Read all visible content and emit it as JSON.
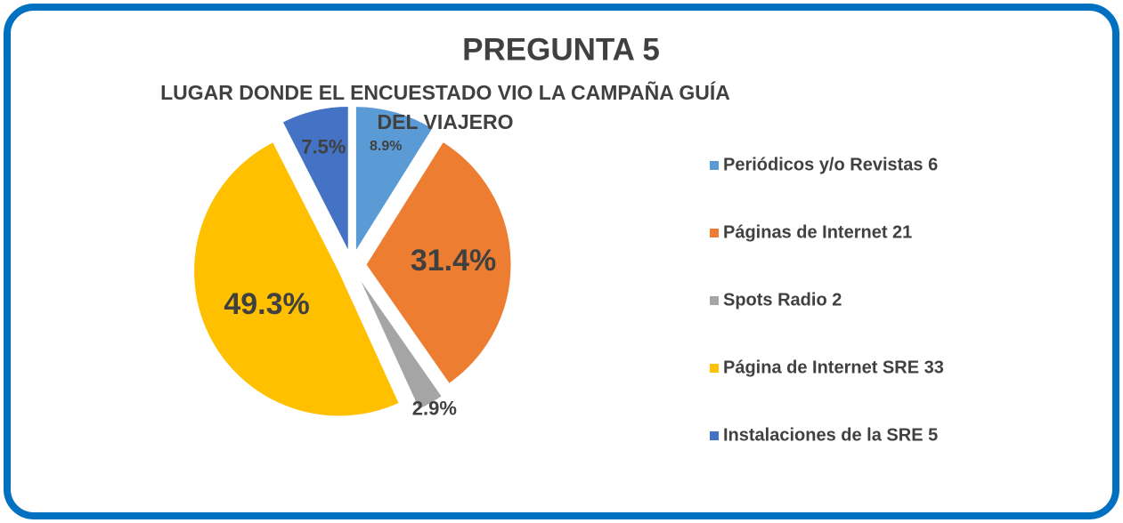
{
  "chart_data": {
    "type": "pie",
    "title": "PREGUNTA 5",
    "subtitle": "LUGAR DONDE EL ENCUESTADO VIO LA CAMPAÑA GUÍA DEL VIAJERO",
    "categories": [
      "Periódicos y/o Revistas 6",
      "Páginas de Internet 21",
      "Spots Radio 2",
      "Página de Internet SRE 33",
      "Instalaciones de la SRE 5"
    ],
    "values": [
      8.9,
      31.4,
      2.9,
      49.3,
      7.5
    ],
    "value_labels": [
      "8.9%",
      "31.4%",
      "2.9%",
      "49.3%",
      "7.5%"
    ],
    "colors": [
      "#5b9bd5",
      "#ed7d31",
      "#a5a5a5",
      "#ffc000",
      "#4472c4"
    ],
    "legend": "right"
  }
}
